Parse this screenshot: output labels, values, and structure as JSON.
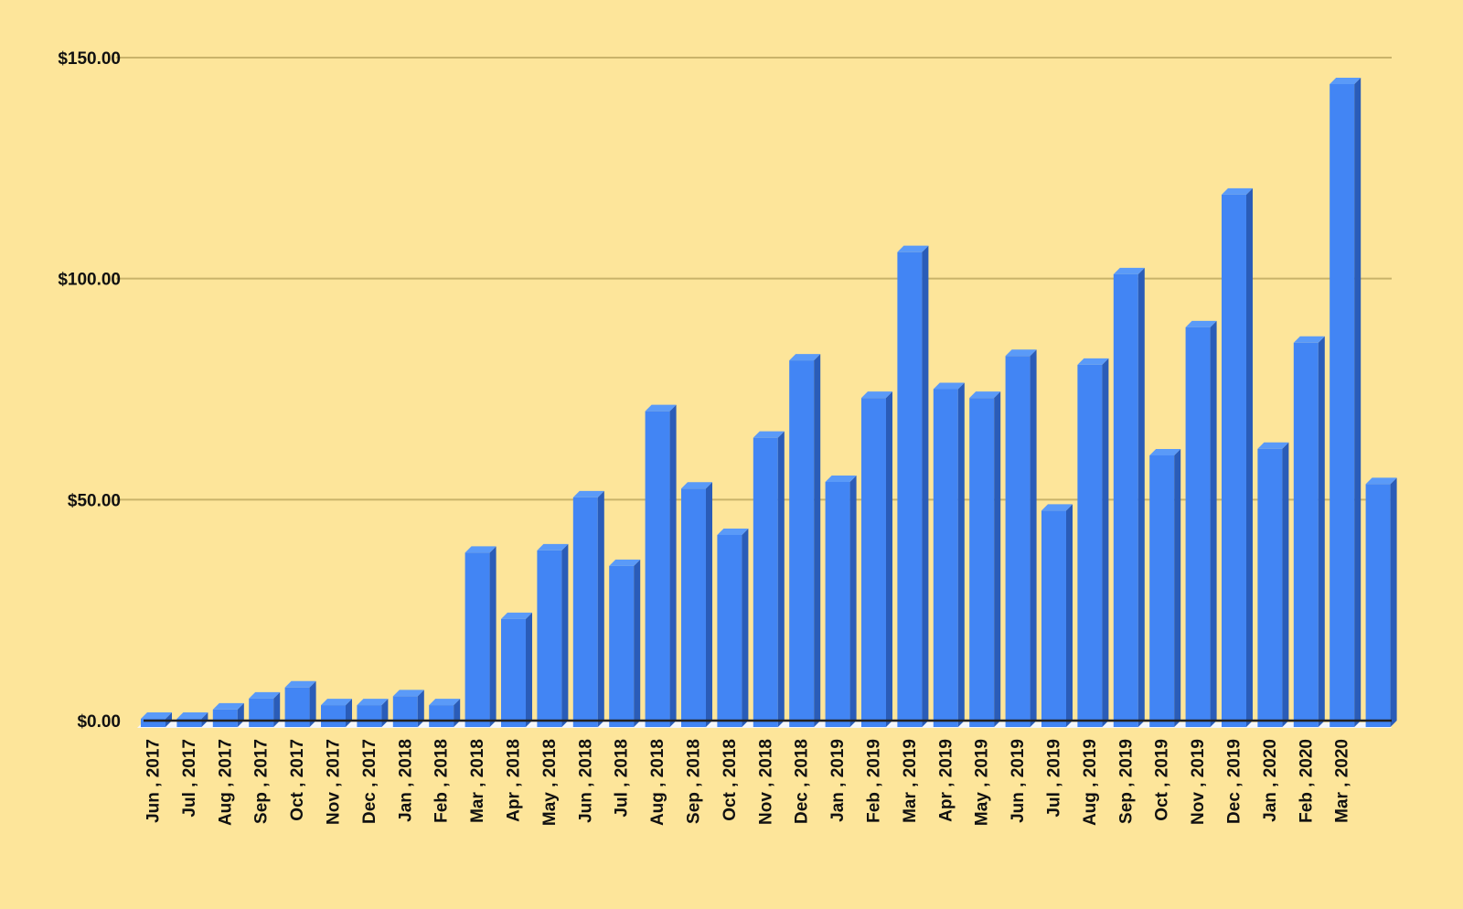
{
  "chart_data": {
    "type": "bar",
    "style": "3d-columns",
    "title": "",
    "xlabel": "",
    "ylabel": "",
    "ylim": [
      0,
      150
    ],
    "y_ticks": [
      {
        "value": 0,
        "label": "$0.00"
      },
      {
        "value": 50,
        "label": "$50.00"
      },
      {
        "value": 100,
        "label": "$100.00"
      },
      {
        "value": 150,
        "label": "$150.00"
      }
    ],
    "grid": true,
    "legend": "none",
    "colors": {
      "background": "#fde59a",
      "bar_front": "#4285f4",
      "bar_top": "#5a9af8",
      "bar_side": "#2a5cb8",
      "gridline": "#c9b36a",
      "axis": "#222222"
    },
    "categories": [
      "Jun , 2017",
      "Jul , 2017",
      "Aug , 2017",
      "Sep , 2017",
      "Oct , 2017",
      "Nov , 2017",
      "Dec , 2017",
      "Jan , 2018",
      "Feb , 2018",
      "Mar , 2018",
      "Apr , 2018",
      "May , 2018",
      "Jun , 2018",
      "Jul , 2018",
      "Aug , 2018",
      "Sep , 2018",
      "Oct , 2018",
      "Nov , 2018",
      "Dec , 2018",
      "Jan , 2019",
      "Feb , 2019",
      "Mar , 2019",
      "Apr , 2019",
      "May , 2019",
      "Jun , 2019",
      "Jul , 2019",
      "Aug , 2019",
      "Sep , 2019",
      "Oct , 2019",
      "Nov , 2019",
      "Dec , 2019",
      "Jan , 2020",
      "Feb , 2020",
      "Mar , 2020",
      ""
    ],
    "values": [
      0,
      0,
      2.5,
      5,
      7.5,
      3.5,
      3.5,
      5.5,
      3.5,
      38,
      23,
      38.5,
      50.5,
      35,
      70,
      52.5,
      42,
      64,
      81.5,
      54,
      73,
      106,
      75,
      73,
      82.5,
      47.5,
      80.5,
      101,
      60,
      89,
      119,
      61.5,
      85.5,
      144,
      53.5
    ]
  }
}
